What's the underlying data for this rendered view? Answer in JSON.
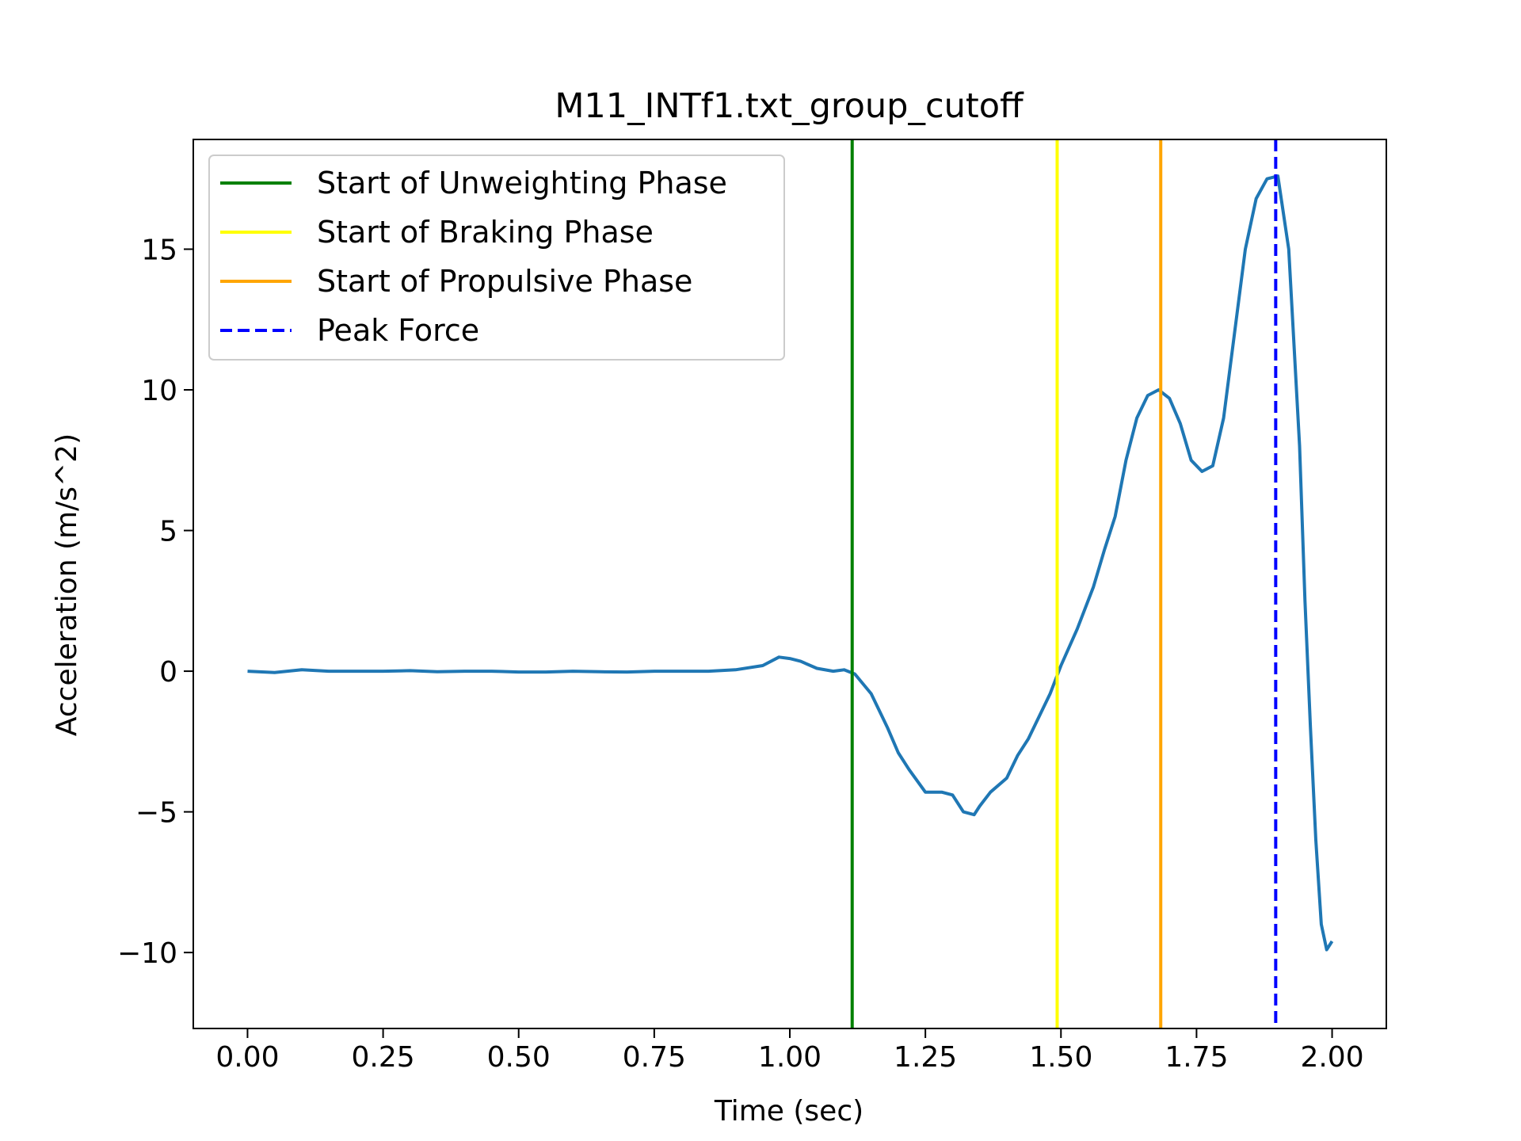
{
  "chart_data": {
    "type": "line",
    "title": "M11_INTf1.txt_group_cutoff",
    "xlabel": "Time (sec)",
    "ylabel": "Acceleration (m/s^2)",
    "xlim": [
      -0.1,
      2.1
    ],
    "ylim": [
      -12.7,
      18.9
    ],
    "xticks": [
      0.0,
      0.25,
      0.5,
      0.75,
      1.0,
      1.25,
      1.5,
      1.75,
      2.0
    ],
    "xtick_labels": [
      "0.00",
      "0.25",
      "0.50",
      "0.75",
      "1.00",
      "1.25",
      "1.50",
      "1.75",
      "2.00"
    ],
    "yticks": [
      -10,
      -5,
      0,
      5,
      10,
      15
    ],
    "ytick_labels": [
      "−10",
      "−5",
      "0",
      "5",
      "10",
      "15"
    ],
    "grid": false,
    "legend_position": "top-left",
    "series": [
      {
        "color": "#1f77b4",
        "x": [
          0.0,
          0.05,
          0.1,
          0.15,
          0.2,
          0.25,
          0.3,
          0.35,
          0.4,
          0.45,
          0.5,
          0.55,
          0.6,
          0.65,
          0.7,
          0.75,
          0.8,
          0.85,
          0.9,
          0.95,
          0.98,
          1.0,
          1.02,
          1.05,
          1.08,
          1.1,
          1.12,
          1.15,
          1.18,
          1.2,
          1.22,
          1.25,
          1.28,
          1.3,
          1.32,
          1.34,
          1.35,
          1.37,
          1.4,
          1.42,
          1.44,
          1.46,
          1.48,
          1.5,
          1.53,
          1.56,
          1.58,
          1.6,
          1.62,
          1.64,
          1.66,
          1.68,
          1.7,
          1.72,
          1.74,
          1.76,
          1.78,
          1.8,
          1.82,
          1.84,
          1.86,
          1.88,
          1.9,
          1.92,
          1.94,
          1.95,
          1.96,
          1.97,
          1.98,
          1.99,
          2.0
        ],
        "y": [
          0.0,
          -0.05,
          0.05,
          0.0,
          0.0,
          0.0,
          0.02,
          -0.02,
          0.0,
          0.0,
          -0.03,
          -0.03,
          0.0,
          -0.02,
          -0.03,
          0.0,
          0.0,
          0.0,
          0.05,
          0.2,
          0.5,
          0.45,
          0.35,
          0.1,
          0.0,
          0.05,
          -0.1,
          -0.8,
          -2.0,
          -2.9,
          -3.5,
          -4.3,
          -4.3,
          -4.4,
          -5.0,
          -5.1,
          -4.8,
          -4.3,
          -3.8,
          -3.0,
          -2.4,
          -1.6,
          -0.8,
          0.2,
          1.5,
          3.0,
          4.3,
          5.5,
          7.5,
          9.0,
          9.8,
          10.0,
          9.7,
          8.8,
          7.5,
          7.1,
          7.3,
          9.0,
          12.0,
          15.0,
          16.8,
          17.5,
          17.6,
          15.0,
          8.0,
          2.5,
          -2.0,
          -6.0,
          -9.0,
          -9.9,
          -9.6
        ]
      }
    ],
    "vlines": [
      {
        "x": 1.115,
        "color": "#008000",
        "style": "solid",
        "label": "Start of Unweighting Phase"
      },
      {
        "x": 1.493,
        "color": "#ffff00",
        "style": "solid",
        "label": "Start of Braking Phase"
      },
      {
        "x": 1.684,
        "color": "#ffa500",
        "style": "solid",
        "label": "Start of Propulsive Phase"
      },
      {
        "x": 1.896,
        "color": "#0000ff",
        "style": "dashed",
        "label": "Peak Force"
      }
    ]
  }
}
